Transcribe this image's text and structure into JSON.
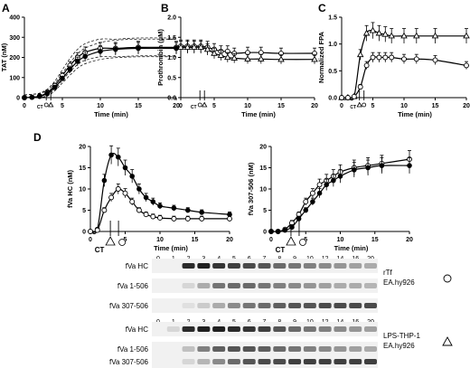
{
  "figure": {
    "panel_letters": [
      "A",
      "B",
      "C",
      "D"
    ],
    "ct_label": "CT",
    "xlabel": "Time (min)"
  },
  "chart_data": [
    {
      "id": "A",
      "type": "line",
      "ylabel": "TAT (nM)",
      "xlim": [
        0,
        20
      ],
      "ylim": [
        0,
        400
      ],
      "xticks": [
        0,
        5,
        10,
        15,
        20
      ],
      "yticks": [
        0,
        100,
        200,
        300,
        400
      ],
      "markers": [
        "circle",
        "triangle"
      ],
      "confidence_bands": true,
      "series": [
        {
          "marker": "open-circle",
          "x": [
            0,
            1,
            2,
            3,
            4,
            5,
            6,
            7,
            8,
            10,
            12,
            15,
            20
          ],
          "y": [
            0,
            2,
            8,
            25,
            60,
            110,
            160,
            200,
            225,
            245,
            245,
            250,
            250
          ]
        },
        {
          "marker": "filled-circle",
          "x": [
            0,
            1,
            2,
            3,
            4,
            5,
            6,
            7,
            8,
            10,
            12,
            15,
            20
          ],
          "y": [
            0,
            2,
            6,
            20,
            50,
            95,
            140,
            180,
            205,
            230,
            240,
            245,
            245
          ]
        }
      ]
    },
    {
      "id": "B",
      "type": "line",
      "ylabel": "Prothrombin (µM)",
      "xlim": [
        0,
        20
      ],
      "ylim": [
        0,
        2.0
      ],
      "xticks": [
        0,
        5,
        10,
        15,
        20
      ],
      "yticks": [
        0.0,
        0.5,
        1.0,
        1.5,
        2.0
      ],
      "series": [
        {
          "marker": "open-circle",
          "x": [
            0,
            1,
            2,
            3,
            4,
            5,
            6,
            7,
            8,
            10,
            12,
            15,
            20
          ],
          "y": [
            1.28,
            1.28,
            1.28,
            1.28,
            1.25,
            1.2,
            1.15,
            1.15,
            1.1,
            1.12,
            1.12,
            1.1,
            1.1
          ]
        },
        {
          "marker": "triangle",
          "x": [
            0,
            1,
            2,
            3,
            4,
            5,
            6,
            7,
            8,
            10,
            12,
            15,
            20
          ],
          "y": [
            1.25,
            1.25,
            1.25,
            1.25,
            1.2,
            1.1,
            1.05,
            1.0,
            0.98,
            0.96,
            0.96,
            0.95,
            0.95
          ]
        }
      ]
    },
    {
      "id": "C",
      "type": "line",
      "ylabel": "Normalized FPA",
      "xlim": [
        0,
        20
      ],
      "ylim": [
        0,
        1.5
      ],
      "xticks": [
        0,
        5,
        10,
        15,
        20
      ],
      "yticks": [
        0.0,
        0.5,
        1.0,
        1.5
      ],
      "series": [
        {
          "marker": "triangle",
          "x": [
            0,
            1,
            2,
            3,
            4,
            5,
            6,
            7,
            8,
            10,
            12,
            15,
            20
          ],
          "y": [
            0,
            0,
            0.02,
            0.8,
            1.2,
            1.25,
            1.2,
            1.18,
            1.15,
            1.15,
            1.15,
            1.15,
            1.15
          ]
        },
        {
          "marker": "open-circle",
          "x": [
            0,
            1,
            2,
            3,
            4,
            5,
            6,
            7,
            8,
            10,
            12,
            15,
            20
          ],
          "y": [
            0,
            0,
            0.02,
            0.2,
            0.6,
            0.75,
            0.75,
            0.75,
            0.75,
            0.72,
            0.72,
            0.7,
            0.6
          ]
        }
      ]
    },
    {
      "id": "D-HC",
      "type": "line",
      "ylabel": "fVa HC (nM)",
      "xlim": [
        0,
        20
      ],
      "ylim": [
        0,
        20
      ],
      "xticks": [
        0,
        5,
        10,
        15,
        20
      ],
      "yticks": [
        0,
        5,
        10,
        15,
        20
      ],
      "series": [
        {
          "marker": "filled-circle",
          "x": [
            0,
            1,
            2,
            3,
            4,
            5,
            6,
            7,
            8,
            9,
            10,
            12,
            14,
            16,
            20
          ],
          "y": [
            0,
            0.5,
            12,
            18,
            17.5,
            15,
            13,
            10,
            8,
            7,
            6,
            5.5,
            5,
            4.5,
            4
          ]
        },
        {
          "marker": "open-circle",
          "x": [
            0,
            1,
            2,
            3,
            4,
            5,
            6,
            7,
            8,
            9,
            10,
            12,
            14,
            16,
            20
          ],
          "y": [
            0,
            0.3,
            5,
            8,
            10,
            9,
            7,
            5,
            4,
            3.5,
            3.2,
            3,
            3,
            3,
            3
          ]
        }
      ]
    },
    {
      "id": "D-307",
      "type": "line",
      "ylabel": "fVa 307-506 (nM)",
      "xlim": [
        0,
        20
      ],
      "ylim": [
        0,
        20
      ],
      "xticks": [
        0,
        5,
        10,
        15,
        20
      ],
      "yticks": [
        0,
        5,
        10,
        15,
        20
      ],
      "series": [
        {
          "marker": "open-circle",
          "x": [
            0,
            1,
            2,
            3,
            4,
            5,
            6,
            7,
            8,
            9,
            10,
            12,
            14,
            16,
            20
          ],
          "y": [
            0,
            0,
            0.5,
            2,
            4,
            7,
            9,
            11,
            12,
            13,
            14,
            15,
            15.5,
            16,
            17
          ]
        },
        {
          "marker": "filled-circle",
          "x": [
            0,
            1,
            2,
            3,
            4,
            5,
            6,
            7,
            8,
            9,
            10,
            12,
            14,
            16,
            20
          ],
          "y": [
            0,
            0,
            0.3,
            1,
            3,
            5,
            7,
            9,
            11,
            12,
            13,
            14.5,
            15,
            15.5,
            15.5
          ]
        }
      ]
    }
  ],
  "blots": [
    {
      "lane_labels": [
        "0",
        "1",
        "2",
        "3",
        "4",
        "5",
        "6",
        "7",
        "8",
        "9",
        "10",
        "12",
        "14",
        "16",
        "20"
      ],
      "bands": [
        "fVa HC",
        "fVa 1-506",
        "fVa 307-506"
      ],
      "condition": [
        "rTf",
        "EA.hy926"
      ],
      "symbol": "circle"
    },
    {
      "lane_labels": [
        "0",
        "1",
        "2",
        "3",
        "4",
        "5",
        "6",
        "7",
        "8",
        "9",
        "10",
        "12",
        "14",
        "16",
        "20"
      ],
      "bands": [
        "fVa HC",
        "fVa 1-506",
        "fVa 307-506"
      ],
      "condition": [
        "LPS-THP-1",
        "EA.hy926"
      ],
      "symbol": "triangle"
    }
  ]
}
